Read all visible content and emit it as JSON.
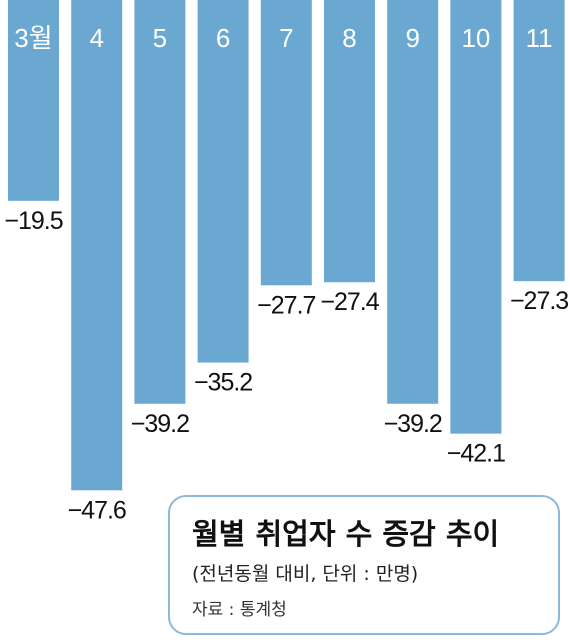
{
  "chart_data": {
    "type": "bar",
    "categories": [
      "3월",
      "4",
      "5",
      "6",
      "7",
      "8",
      "9",
      "10",
      "11"
    ],
    "values": [
      -19.5,
      -47.6,
      -39.2,
      -35.2,
      -27.7,
      -27.4,
      -39.2,
      -42.1,
      -27.3
    ],
    "value_labels": [
      "−19.5",
      "−47.6",
      "−39.2",
      "−35.2",
      "−27.7",
      "−27.4",
      "−39.2",
      "−42.1",
      "−27.3"
    ],
    "title": "월별 취업자 수 증감 추이",
    "subtitle": "(전년동월 대비, 단위 : 만명)",
    "source": "자료 : 통계청",
    "ylim": [
      -50,
      0
    ],
    "grid": false,
    "legend": "none",
    "bar_color": "#6aa8d2"
  }
}
